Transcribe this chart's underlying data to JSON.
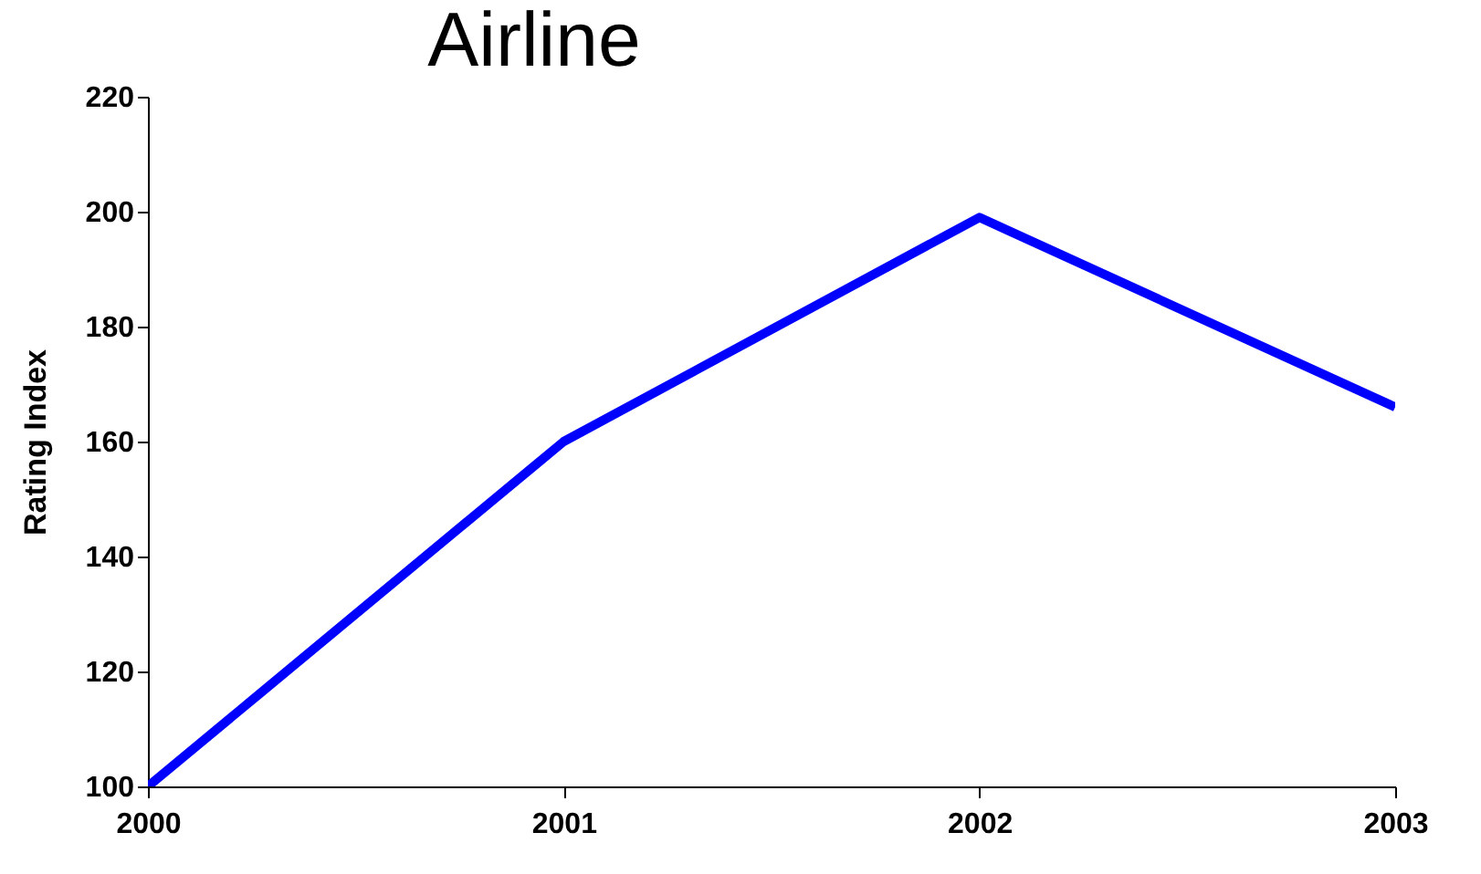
{
  "chart_data": {
    "type": "line",
    "title": "Airline",
    "ylabel": "Rating Index",
    "x": [
      2000,
      2001,
      2002,
      2003
    ],
    "series": [
      {
        "color": "#0000ff",
        "values": [
          100,
          160,
          199,
          166
        ]
      }
    ],
    "xlim": [
      2000,
      2003
    ],
    "xticks": [
      2000,
      2001,
      2002,
      2003
    ],
    "ylim": [
      100,
      220
    ],
    "yticks": [
      100,
      120,
      140,
      160,
      180,
      200,
      220
    ],
    "grid": false,
    "legend": false,
    "marker": "none",
    "line_style": "solid"
  }
}
